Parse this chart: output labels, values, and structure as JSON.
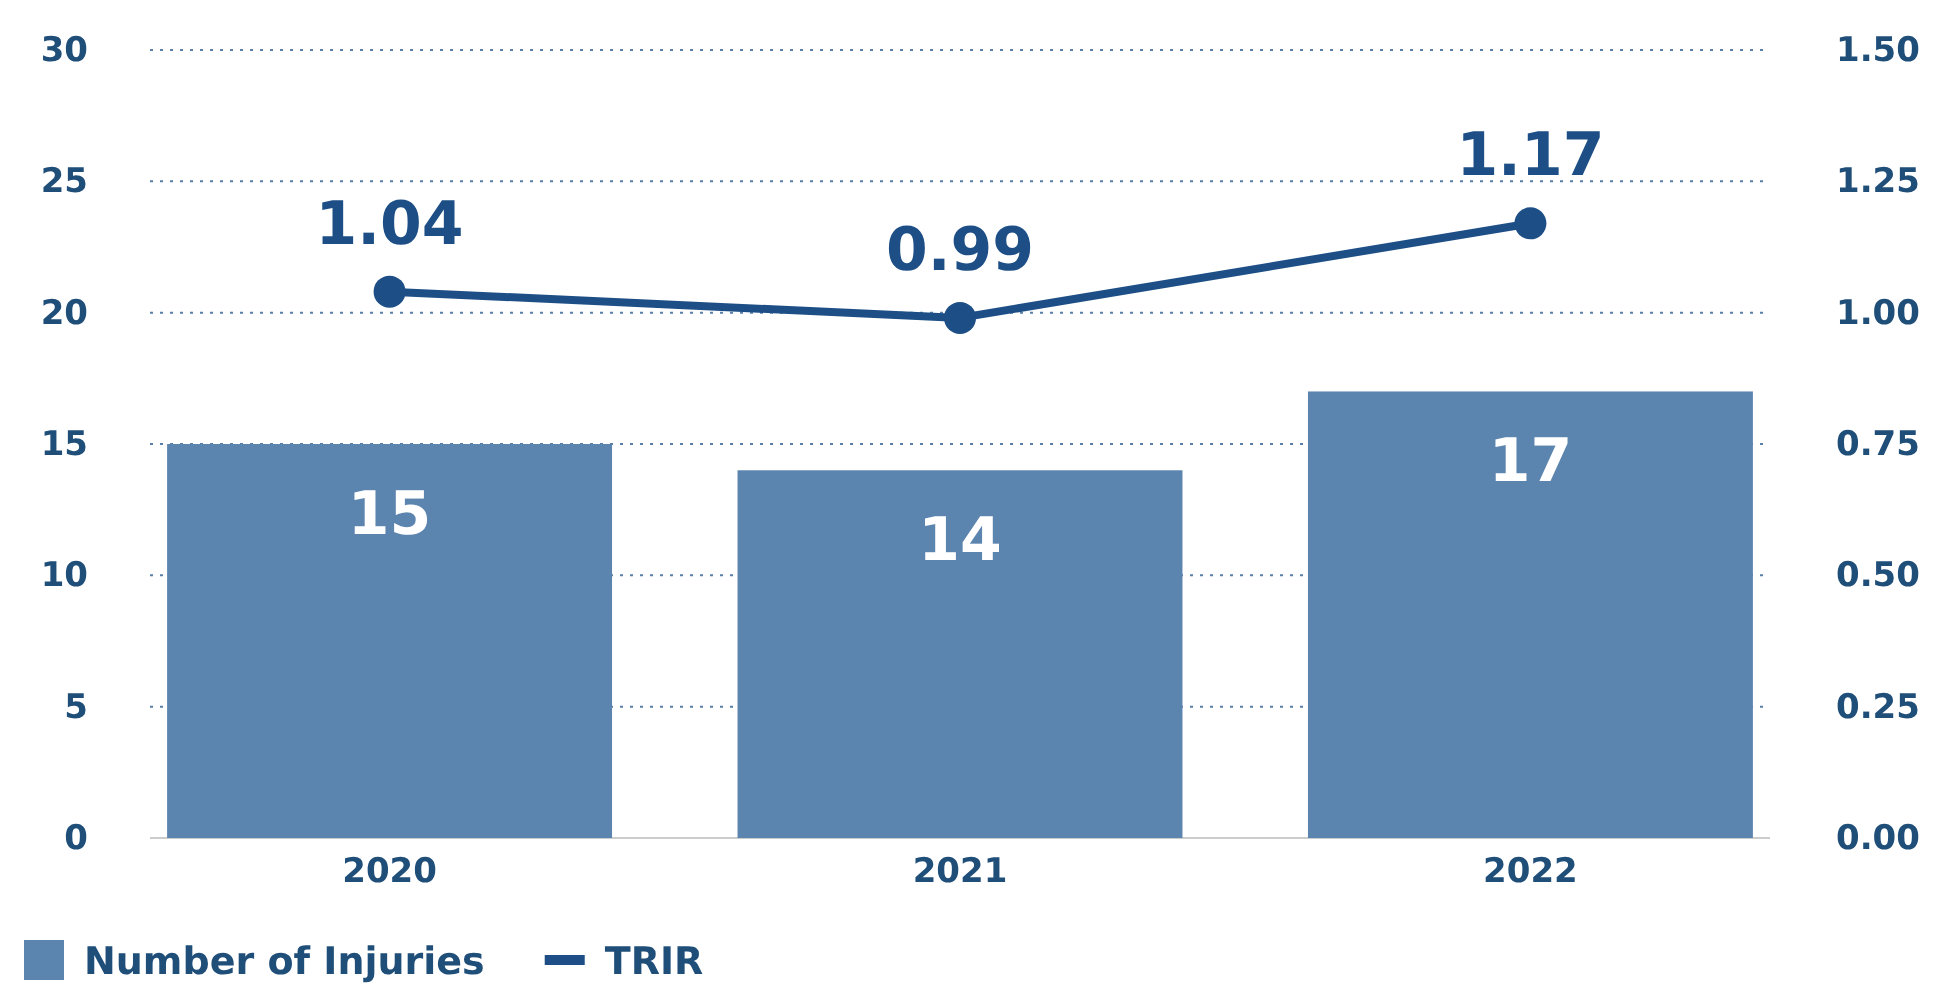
{
  "chart_data": {
    "type": "bar",
    "categories": [
      "2020",
      "2021",
      "2022"
    ],
    "series": [
      {
        "name": "Number of Injuries",
        "color": "#5b84ae",
        "values": [
          15,
          14,
          17
        ]
      },
      {
        "name": "TRIR",
        "type": "line",
        "axis": "y2",
        "color": "#1d4f86",
        "values": [
          1.04,
          0.99,
          1.17
        ]
      }
    ],
    "ylim": [
      0,
      30
    ],
    "yticks": [
      0,
      5,
      10,
      15,
      20,
      25,
      30
    ],
    "y2lim": [
      0,
      1.5
    ],
    "y2ticks": [
      {
        "value": 0,
        "label": "0.00"
      },
      {
        "value": 0.25,
        "label": "0.25"
      },
      {
        "value": 0.5,
        "label": "0.50"
      },
      {
        "value": 0.75,
        "label": "0.75"
      },
      {
        "value": 1,
        "label": "1.00"
      },
      {
        "value": 1.25,
        "label": "1.25"
      },
      {
        "value": 1.5,
        "label": "1.50"
      }
    ],
    "grid": "y",
    "legend": "bottom left",
    "marker": "circle",
    "line_style": "solid",
    "data_labels": true
  }
}
